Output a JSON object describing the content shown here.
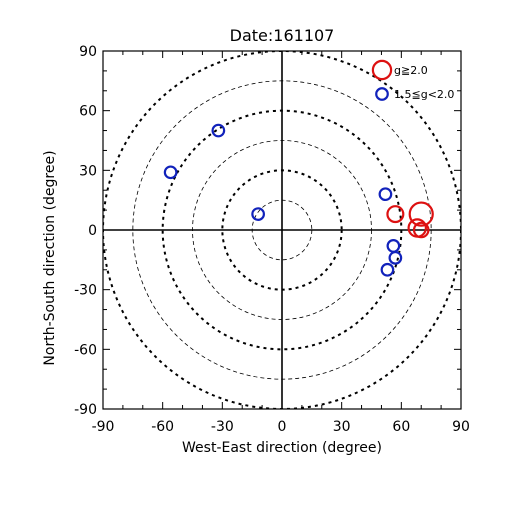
{
  "chart_data": {
    "type": "scatter",
    "title": "Date:161107",
    "xlabel": "West-East direction (degree)",
    "ylabel": "North-South direction (degree)",
    "xlim": [
      -90,
      90
    ],
    "ylim": [
      -90,
      90
    ],
    "xticks": [
      -90,
      -60,
      -30,
      0,
      30,
      60,
      90
    ],
    "yticks": [
      -90,
      -60,
      -30,
      0,
      30,
      60,
      90
    ],
    "xtick_labels": [
      "-90",
      "-60",
      "-30",
      "0",
      "30",
      "60",
      "90"
    ],
    "ytick_labels": [
      "-90",
      "-60",
      "-30",
      "0",
      "30",
      "60",
      "90"
    ],
    "reference_circles": [
      {
        "radius": 15,
        "style": "thin-dashed"
      },
      {
        "radius": 30,
        "style": "thick-dashed"
      },
      {
        "radius": 45,
        "style": "thin-dashed"
      },
      {
        "radius": 60,
        "style": "thick-dashed"
      },
      {
        "radius": 75,
        "style": "thin-dashed"
      },
      {
        "radius": 90,
        "style": "thick-dashed"
      }
    ],
    "series": [
      {
        "name": "g≧2.0",
        "color": "#dd1111",
        "points": [
          {
            "x": 57,
            "y": 8,
            "size": 2.2
          },
          {
            "x": 70,
            "y": 8,
            "size": 3.2
          },
          {
            "x": 68,
            "y": 1,
            "size": 2.4
          },
          {
            "x": 70,
            "y": 0,
            "size": 2.0
          }
        ]
      },
      {
        "name": "1.5≦g<2.0",
        "color": "#1122bb",
        "points": [
          {
            "x": -56,
            "y": 29,
            "size": 1.6
          },
          {
            "x": -32,
            "y": 50,
            "size": 1.6
          },
          {
            "x": -12,
            "y": 8,
            "size": 1.6
          },
          {
            "x": 52,
            "y": 18,
            "size": 1.6
          },
          {
            "x": 56,
            "y": -8,
            "size": 1.6
          },
          {
            "x": 57,
            "y": -14,
            "size": 1.6
          },
          {
            "x": 53,
            "y": -20,
            "size": 1.6
          }
        ]
      }
    ],
    "legend": {
      "placement": "top-right",
      "entries": [
        {
          "label": "g≧2.0",
          "color": "#dd1111",
          "size": 2.2
        },
        {
          "label": "1.5≦g<2.0",
          "color": "#1122bb",
          "size": 1.6
        }
      ]
    },
    "grid": false
  }
}
